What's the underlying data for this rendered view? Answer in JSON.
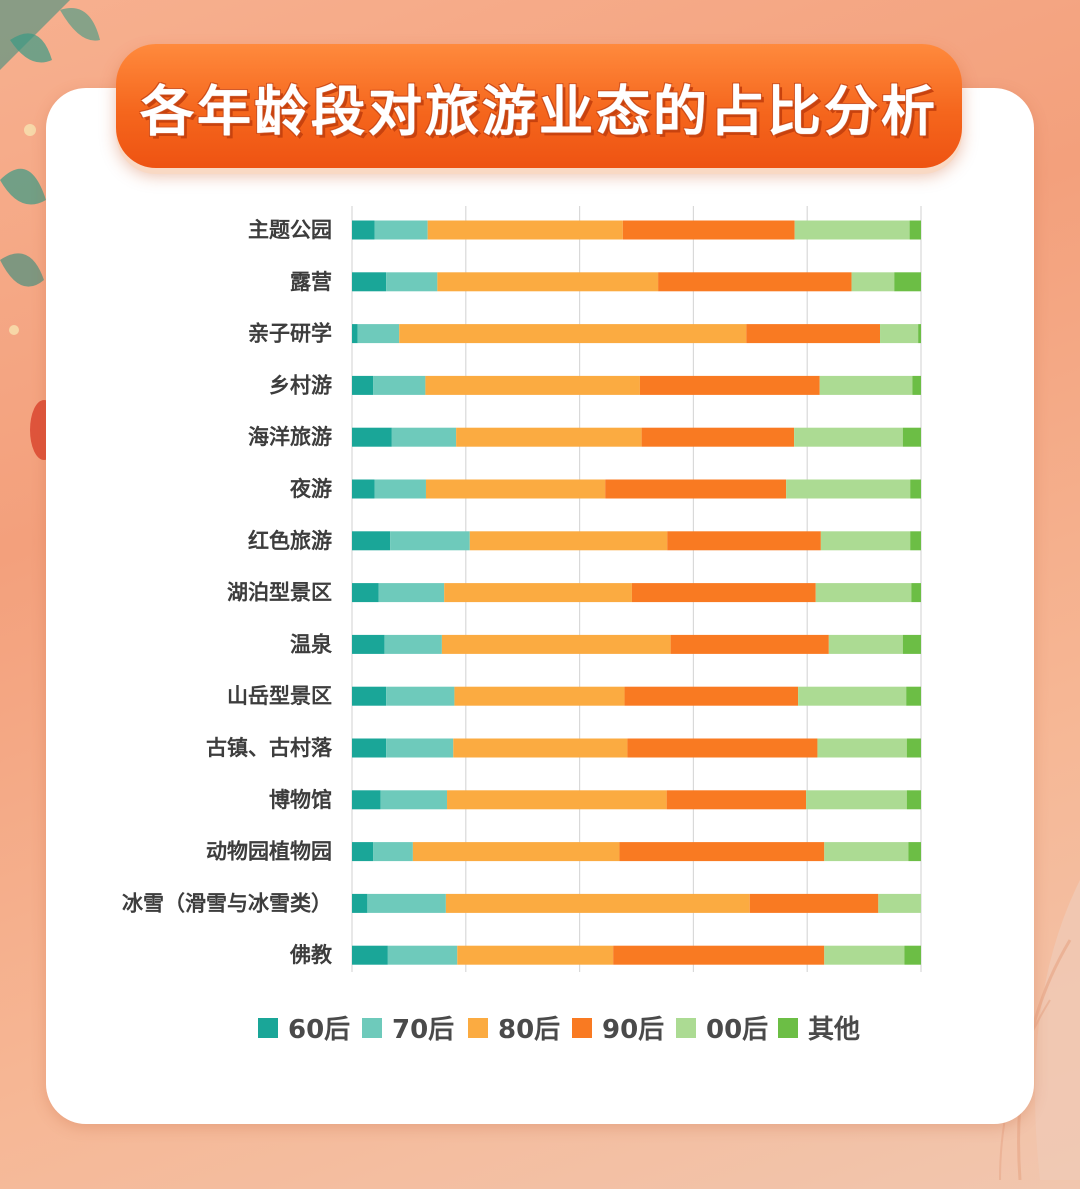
{
  "title": "各年龄段对旅游业态的占比分析",
  "colors": {
    "60后": "#1aa698",
    "70后": "#6ecabb",
    "80后": "#fbab41",
    "90后": "#f97a22",
    "00后": "#acdb93",
    "其他": "#6cbe45"
  },
  "chart_data": {
    "type": "bar",
    "orientation": "horizontal",
    "stacked": true,
    "title": "各年龄段对旅游业态的占比分析",
    "xlim": [
      0,
      100
    ],
    "grid": true,
    "legend_position": "bottom",
    "categories": [
      "主题公园",
      "露营",
      "亲子研学",
      "乡村游",
      "海洋旅游",
      "夜游",
      "红色旅游",
      "湖泊型景区",
      "温泉",
      "山岳型景区",
      "古镇、古村落",
      "博物馆",
      "动物园植物园",
      "冰雪（滑雪与冰雪类）",
      "佛教"
    ],
    "series": [
      {
        "name": "60后",
        "values": [
          4.0,
          6.0,
          1.0,
          3.7,
          7.0,
          4.0,
          6.7,
          4.7,
          5.7,
          6.0,
          6.0,
          5.0,
          3.7,
          2.7,
          6.3
        ]
      },
      {
        "name": "70后",
        "values": [
          9.3,
          9.0,
          7.3,
          9.2,
          11.3,
          9.0,
          14.0,
          11.5,
          10.1,
          12.0,
          11.8,
          11.7,
          7.0,
          13.8,
          12.2
        ]
      },
      {
        "name": "80后",
        "values": [
          34.3,
          38.8,
          61.0,
          37.7,
          32.6,
          31.5,
          34.7,
          33.0,
          40.2,
          29.9,
          30.6,
          38.6,
          36.3,
          53.4,
          27.4
        ]
      },
      {
        "name": "90后",
        "values": [
          30.2,
          34.0,
          23.5,
          31.6,
          26.8,
          31.8,
          27.0,
          32.3,
          27.8,
          30.5,
          33.4,
          24.5,
          36.0,
          22.6,
          37.1
        ]
      },
      {
        "name": "00后",
        "values": [
          20.2,
          7.5,
          6.7,
          16.3,
          19.1,
          21.8,
          15.7,
          16.8,
          13.0,
          19.0,
          15.7,
          17.7,
          14.8,
          7.5,
          14.1
        ]
      },
      {
        "name": "其他",
        "values": [
          2.0,
          4.7,
          0.5,
          1.5,
          3.2,
          1.9,
          1.9,
          1.7,
          3.2,
          2.6,
          2.5,
          2.5,
          2.2,
          0.0,
          2.9
        ]
      }
    ]
  }
}
